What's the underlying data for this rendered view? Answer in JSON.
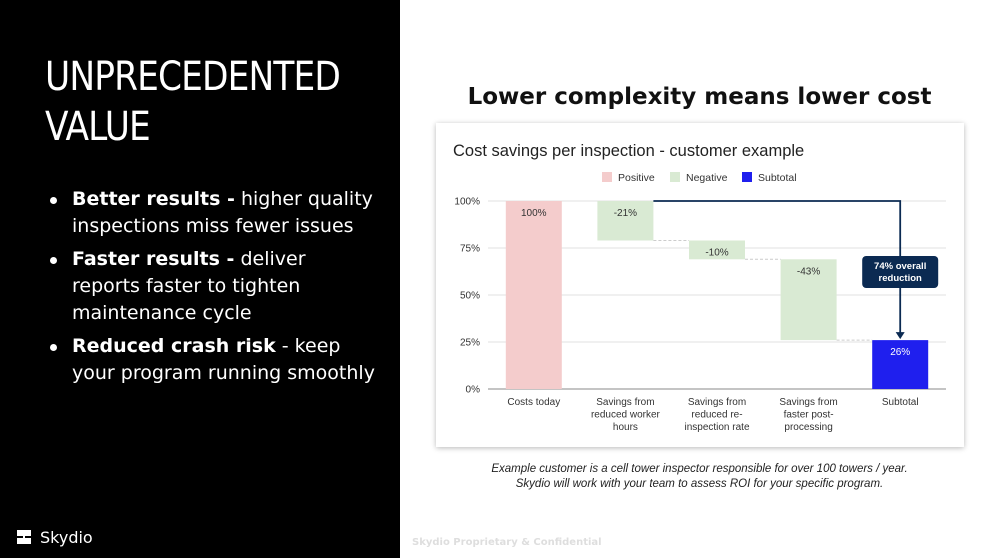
{
  "slide": {
    "title_line1": "UNPRECEDENTED",
    "title_line2": "VALUE",
    "bullets": [
      {
        "bold": "Better results -",
        "text": " higher quality inspections miss fewer issues"
      },
      {
        "bold": "Faster results -",
        "text": " deliver reports faster to tighten maintenance cycle"
      },
      {
        "bold": "Reduced crash risk",
        "text": " - keep your program running smoothly"
      }
    ],
    "logo_text": "Skydio",
    "right_title": "Lower complexity means lower cost",
    "caption_line1": "Example customer is a cell tower inspector responsible for over 100 towers / year.",
    "caption_line2": "Skydio will work with your team to assess ROI for your specific program.",
    "footer": "Skydio Proprietary & Confidential"
  },
  "colors": {
    "positive": "#f4cccc",
    "negative": "#d9ead3",
    "subtotal": "#1f1fee",
    "connector": "#0b2a52",
    "callout_bg": "#0b2a52"
  },
  "chart_data": {
    "type": "waterfall",
    "title": "Cost savings per inspection - customer example",
    "legend": [
      "Positive",
      "Negative",
      "Subtotal"
    ],
    "legend_position": "top",
    "y_ticks": [
      0,
      25,
      50,
      75,
      100
    ],
    "y_tick_labels": [
      "0%",
      "25%",
      "50%",
      "75%",
      "100%"
    ],
    "ylim": [
      0,
      100
    ],
    "categories": [
      "Costs today",
      "Savings from reduced worker hours",
      "Savings from reduced re-inspection rate",
      "Savings from faster post-processing",
      "Subtotal"
    ],
    "category_lines": [
      [
        "Costs today"
      ],
      [
        "Savings from",
        "reduced worker",
        "hours"
      ],
      [
        "Savings from",
        "reduced re-",
        "inspection rate"
      ],
      [
        "Savings from",
        "faster post-",
        "processing"
      ],
      [
        "Subtotal"
      ]
    ],
    "bars": [
      {
        "kind": "positive",
        "start": 0,
        "end": 100,
        "label": "100%"
      },
      {
        "kind": "negative",
        "start": 100,
        "end": 79,
        "label": "-21%"
      },
      {
        "kind": "negative",
        "start": 79,
        "end": 69,
        "label": "-10%"
      },
      {
        "kind": "negative",
        "start": 69,
        "end": 26,
        "label": "-43%"
      },
      {
        "kind": "subtotal",
        "start": 0,
        "end": 26,
        "label": "26%"
      }
    ],
    "annotation": {
      "line1": "74% overall",
      "line2": "reduction",
      "from_value": 100,
      "to_value": 26
    }
  }
}
